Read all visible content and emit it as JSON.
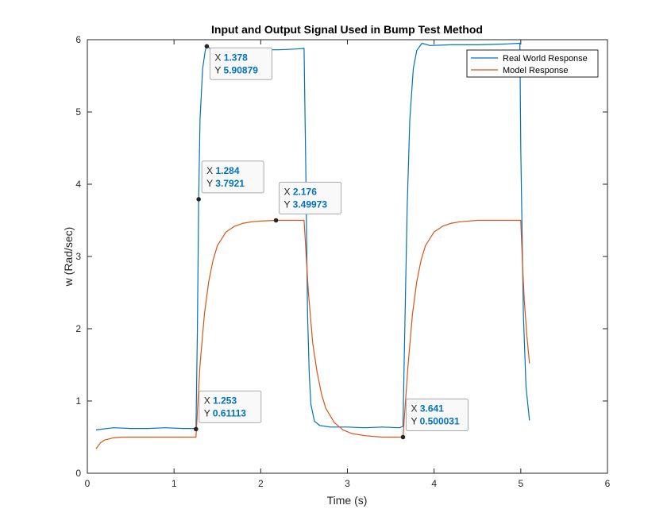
{
  "chart_data": {
    "type": "line",
    "title": "Input and Output Signal Used in Bump Test Method",
    "xlabel": "Time (s)",
    "ylabel": "w (Rad/sec)",
    "xlim": [
      0,
      6
    ],
    "ylim": [
      0,
      6
    ],
    "xticks": [
      0,
      1,
      2,
      3,
      4,
      5,
      6
    ],
    "yticks": [
      0,
      1,
      2,
      3,
      4,
      5,
      6
    ],
    "grid": false,
    "legend_position": "top-right",
    "series": [
      {
        "name": "Real World Response",
        "color": "#0072BD",
        "x": [
          0.1,
          0.3,
          0.5,
          0.7,
          0.9,
          1.1,
          1.24,
          1.253,
          1.27,
          1.284,
          1.3,
          1.33,
          1.36,
          1.378,
          1.45,
          1.6,
          1.8,
          2.0,
          2.2,
          2.4,
          2.5,
          2.52,
          2.54,
          2.56,
          2.58,
          2.62,
          2.68,
          2.8,
          3.0,
          3.2,
          3.4,
          3.6,
          3.641,
          3.66,
          3.69,
          3.72,
          3.76,
          3.8,
          3.86,
          3.95,
          4.2,
          4.5,
          4.8,
          4.99,
          5.0,
          5.03,
          5.06,
          5.1
        ],
        "y": [
          0.6,
          0.63,
          0.62,
          0.62,
          0.63,
          0.62,
          0.62,
          0.61113,
          2.0,
          3.7921,
          4.9,
          5.6,
          5.85,
          5.90879,
          5.85,
          5.85,
          5.84,
          5.86,
          5.86,
          5.87,
          5.88,
          4.2,
          2.2,
          1.35,
          0.95,
          0.72,
          0.66,
          0.64,
          0.64,
          0.63,
          0.64,
          0.63,
          0.65,
          1.9,
          3.7,
          4.9,
          5.6,
          5.85,
          5.95,
          5.92,
          5.93,
          5.93,
          5.94,
          5.95,
          4.5,
          2.2,
          1.2,
          0.73
        ]
      },
      {
        "name": "Model Response",
        "color": "#D95319",
        "x": [
          0.1,
          0.15,
          0.2,
          0.3,
          0.4,
          0.6,
          1.0,
          1.253,
          1.3,
          1.35,
          1.4,
          1.45,
          1.5,
          1.6,
          1.7,
          1.8,
          1.9,
          2.0,
          2.176,
          2.5,
          2.55,
          2.6,
          2.65,
          2.7,
          2.75,
          2.85,
          2.95,
          3.05,
          3.2,
          3.4,
          3.641,
          3.7,
          3.75,
          3.8,
          3.85,
          3.9,
          4.0,
          4.1,
          4.2,
          4.3,
          4.5,
          5.0,
          5.02,
          5.04,
          5.07,
          5.1
        ],
        "y": [
          0.34,
          0.42,
          0.46,
          0.49,
          0.5,
          0.5,
          0.5,
          0.5,
          1.5,
          2.2,
          2.65,
          2.95,
          3.15,
          3.34,
          3.42,
          3.46,
          3.48,
          3.49,
          3.49973,
          3.5,
          2.5,
          1.8,
          1.4,
          1.1,
          0.9,
          0.7,
          0.6,
          0.55,
          0.52,
          0.5,
          0.500031,
          1.5,
          2.2,
          2.65,
          2.95,
          3.15,
          3.34,
          3.42,
          3.46,
          3.48,
          3.5,
          3.5,
          2.9,
          2.4,
          1.9,
          1.52
        ]
      }
    ],
    "datatips": [
      {
        "series": "Real World Response",
        "x": 1.378,
        "y": 5.90879,
        "x_label": "1.378",
        "y_label": "5.90879"
      },
      {
        "series": "Real World Response",
        "x": 1.284,
        "y": 3.7921,
        "x_label": "1.284",
        "y_label": "3.7921"
      },
      {
        "series": "Model Response",
        "x": 2.176,
        "y": 3.49973,
        "x_label": "2.176",
        "y_label": "3.49973"
      },
      {
        "series": "Real World Response",
        "x": 1.253,
        "y": 0.61113,
        "x_label": "1.253",
        "y_label": "0.61113"
      },
      {
        "series": "Model Response",
        "x": 3.641,
        "y": 0.500031,
        "x_label": "3.641",
        "y_label": "0.500031"
      }
    ]
  },
  "datatip_labels": {
    "x_prefix": "X",
    "y_prefix": "Y"
  }
}
